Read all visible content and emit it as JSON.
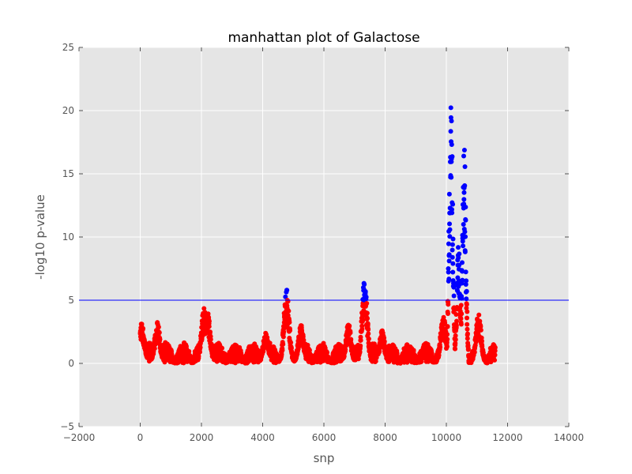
{
  "chart_data": {
    "type": "scatter",
    "title": "manhattan plot of Galactose",
    "xlabel": "snp",
    "ylabel": "-log10 p-value",
    "xlim": [
      -2000,
      14000
    ],
    "ylim": [
      -5,
      25
    ],
    "xticks": [
      -2000,
      0,
      2000,
      4000,
      6000,
      8000,
      10000,
      12000,
      14000
    ],
    "yticks": [
      -5,
      0,
      5,
      10,
      15,
      20,
      25
    ],
    "xtick_labels": [
      "−2000",
      "0",
      "2000",
      "4000",
      "6000",
      "8000",
      "10000",
      "12000",
      "14000"
    ],
    "ytick_labels": [
      "−5",
      "0",
      "5",
      "10",
      "15",
      "20",
      "25"
    ],
    "threshold": 5,
    "grid": true,
    "colors": {
      "below_threshold": "#ff0000",
      "above_threshold": "#0000ff",
      "threshold_line": "#0000ff",
      "plot_background": "#e5e5e5",
      "grid": "#ffffff"
    },
    "peaks": [
      {
        "x": 50,
        "y": 3.3
      },
      {
        "x": 560,
        "y": 3.3
      },
      {
        "x": 2080,
        "y": 4.4
      },
      {
        "x": 2200,
        "y": 4.2
      },
      {
        "x": 4100,
        "y": 2.5
      },
      {
        "x": 4780,
        "y": 5.9
      },
      {
        "x": 5250,
        "y": 3.1
      },
      {
        "x": 6800,
        "y": 3.2
      },
      {
        "x": 7330,
        "y": 6.7
      },
      {
        "x": 7900,
        "y": 2.6
      },
      {
        "x": 9900,
        "y": 3.9
      },
      {
        "x": 10150,
        "y": 21.1
      },
      {
        "x": 10400,
        "y": 9.5
      },
      {
        "x": 10580,
        "y": 17.7
      },
      {
        "x": 11050,
        "y": 4.0
      }
    ],
    "snp_count": 11600
  }
}
